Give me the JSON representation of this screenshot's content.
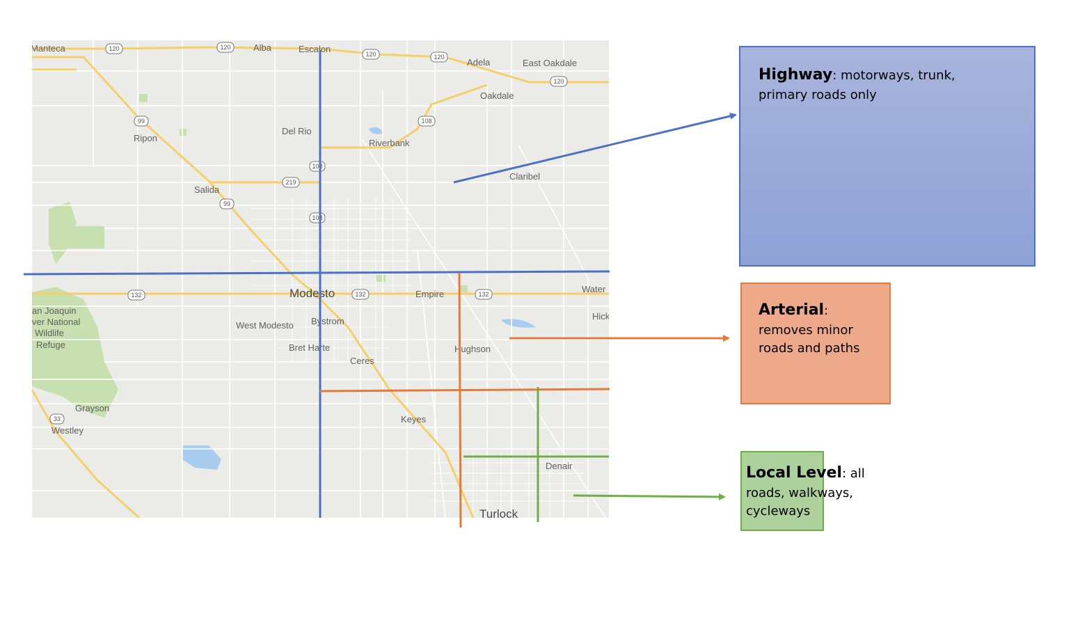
{
  "map": {
    "place_labels": [
      {
        "id": "manteca",
        "text": "Manteca"
      },
      {
        "id": "alba",
        "text": "Alba"
      },
      {
        "id": "escalon",
        "text": "Escalon"
      },
      {
        "id": "adela",
        "text": "Adela"
      },
      {
        "id": "east-oakdale",
        "text": "East Oakdale"
      },
      {
        "id": "oakdale",
        "text": "Oakdale"
      },
      {
        "id": "ripon",
        "text": "Ripon"
      },
      {
        "id": "del-rio",
        "text": "Del Rio"
      },
      {
        "id": "riverbank",
        "text": "Riverbank"
      },
      {
        "id": "claribel",
        "text": "Claribel"
      },
      {
        "id": "salida",
        "text": "Salida"
      },
      {
        "id": "modesto",
        "text": "Modesto"
      },
      {
        "id": "empire",
        "text": "Empire"
      },
      {
        "id": "waterford",
        "text": "Water"
      },
      {
        "id": "hickman",
        "text": "Hick"
      },
      {
        "id": "san-joaquin-1",
        "text": "an Joaquin"
      },
      {
        "id": "san-joaquin-2",
        "text": "ver National"
      },
      {
        "id": "san-joaquin-3",
        "text": "Wildlife"
      },
      {
        "id": "san-joaquin-4",
        "text": "Refuge"
      },
      {
        "id": "west-modesto",
        "text": "West Modesto"
      },
      {
        "id": "bystrom",
        "text": "Bystrom"
      },
      {
        "id": "bret-harte",
        "text": "Bret Harte"
      },
      {
        "id": "ceres",
        "text": "Ceres"
      },
      {
        "id": "hughson",
        "text": "Hughson"
      },
      {
        "id": "grayson",
        "text": "Grayson"
      },
      {
        "id": "westley",
        "text": "Westley"
      },
      {
        "id": "keyes",
        "text": "Keyes"
      },
      {
        "id": "denair",
        "text": "Denair"
      },
      {
        "id": "turlock",
        "text": "Turlock"
      }
    ],
    "route_shields": [
      {
        "id": "r120-a",
        "text": "120"
      },
      {
        "id": "r120-b",
        "text": "120"
      },
      {
        "id": "r120-c",
        "text": "120"
      },
      {
        "id": "r120-d",
        "text": "120"
      },
      {
        "id": "r120-e",
        "text": "120"
      },
      {
        "id": "r108-a",
        "text": "108"
      },
      {
        "id": "r108-b",
        "text": "108"
      },
      {
        "id": "r108-c",
        "text": "108"
      },
      {
        "id": "r99-a",
        "text": "99"
      },
      {
        "id": "r99-b",
        "text": "99"
      },
      {
        "id": "r219",
        "text": "219"
      },
      {
        "id": "r132-a",
        "text": "132"
      },
      {
        "id": "r132-b",
        "text": "132"
      },
      {
        "id": "r132-c",
        "text": "132"
      },
      {
        "id": "r33",
        "text": "33"
      }
    ]
  },
  "levels": {
    "highway": {
      "title": "Highway",
      "description": ": motorways, trunk, primary roads only",
      "color": "#4a72c4",
      "fill_top": "#a8b4dc",
      "fill_bottom": "#8ea2d6"
    },
    "arterial": {
      "title": "Arterial",
      "description_line1": ":",
      "description_line2": "removes minor roads and paths",
      "color": "#e07b3c",
      "fill": "#eda98a"
    },
    "local": {
      "title": "Local Level",
      "description": ": all roads, walkways, cycleways",
      "color": "#70ad47",
      "fill": "#acd19c"
    }
  }
}
